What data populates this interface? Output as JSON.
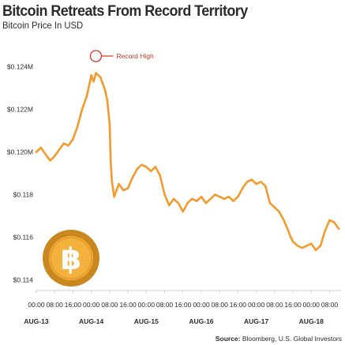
{
  "page": {
    "title": "Bitcoin Retreats From Record Territory",
    "subtitle": "Bitcoin Price In USD",
    "source_label": "Source:",
    "source_text": "Bloomberg, U.S. Global Investors"
  },
  "coin_icon": "bitcoin-coin-icon",
  "colors": {
    "line": "#f29a2e",
    "marker": "#d9332b",
    "annotation_text": "#c0392b",
    "coin_outer": "#c9871e",
    "coin_inner": "#f4b13e",
    "coin_symbol": "#ffffff",
    "axis": "#cfcfcf",
    "text": "#2b2b2b"
  },
  "chart_data": {
    "type": "line",
    "title": "Bitcoin Retreats From Record Territory",
    "subtitle": "Bitcoin Price In USD",
    "ylim": [
      0.1135,
      0.1255
    ],
    "yticks": [
      0.114,
      0.116,
      0.118,
      0.12,
      0.122,
      0.124
    ],
    "ytick_labels": [
      "$0.114",
      "$0.116",
      "$0.118",
      "$0.120M",
      "$0.122M",
      "$0.124M"
    ],
    "xlim": [
      0,
      133
    ],
    "xticks": [
      {
        "x": 0,
        "time": "00:00",
        "date": "AUG-13"
      },
      {
        "x": 8,
        "time": "08:00"
      },
      {
        "x": 16,
        "time": "16:00"
      },
      {
        "x": 24,
        "time": "00:00",
        "date": "AUG-14"
      },
      {
        "x": 32,
        "time": "08:00"
      },
      {
        "x": 40,
        "time": "16:00"
      },
      {
        "x": 48,
        "time": "00:00",
        "date": "AUG-15"
      },
      {
        "x": 56,
        "time": "08:00"
      },
      {
        "x": 64,
        "time": "16:00"
      },
      {
        "x": 72,
        "time": "00:00",
        "date": "AUG-16"
      },
      {
        "x": 80,
        "time": "08:00"
      },
      {
        "x": 88,
        "time": "16:00"
      },
      {
        "x": 96,
        "time": "00:00",
        "date": "AUG-17"
      },
      {
        "x": 104,
        "time": "08:00"
      },
      {
        "x": 112,
        "time": "16:00"
      },
      {
        "x": 120,
        "time": "00:00",
        "date": "AUG-18"
      },
      {
        "x": 128,
        "time": "08:00"
      }
    ],
    "series": [
      {
        "x": [
          0,
          2,
          4,
          6,
          8,
          10,
          12,
          14,
          16,
          18,
          20,
          22,
          23,
          24,
          25,
          26,
          28,
          30,
          31,
          32,
          32.5,
          33,
          34,
          35,
          36,
          38,
          40,
          42,
          44,
          46,
          48,
          50,
          52,
          54,
          56,
          58,
          60,
          62,
          64,
          66,
          68,
          70,
          72,
          74,
          76,
          78,
          80,
          82,
          84,
          86,
          88,
          90,
          92,
          94,
          96,
          98,
          100,
          102,
          104,
          106,
          108,
          110,
          111,
          112,
          114,
          116,
          118,
          120,
          122,
          124,
          126,
          128,
          130,
          132
        ],
        "values": [
          0.12,
          0.1202,
          0.1199,
          0.1196,
          0.1198,
          0.1201,
          0.1204,
          0.1203,
          0.1206,
          0.1212,
          0.122,
          0.1226,
          0.1231,
          0.1236,
          0.1233,
          0.1237,
          0.1235,
          0.1229,
          0.1224,
          0.1213,
          0.1195,
          0.1186,
          0.1179,
          0.1182,
          0.1185,
          0.1182,
          0.1183,
          0.1188,
          0.1192,
          0.1194,
          0.1193,
          0.1191,
          0.1193,
          0.1189,
          0.118,
          0.1175,
          0.1178,
          0.1176,
          0.1172,
          0.1176,
          0.1178,
          0.1177,
          0.1179,
          0.1176,
          0.1178,
          0.118,
          0.1179,
          0.1178,
          0.1179,
          0.1177,
          0.1179,
          0.1183,
          0.1186,
          0.1187,
          0.1185,
          0.1186,
          0.1184,
          0.1176,
          0.1174,
          0.1172,
          0.1168,
          0.1163,
          0.116,
          0.1158,
          0.1156,
          0.1155,
          0.1156,
          0.1157,
          0.1154,
          0.1156,
          0.1163,
          0.1168,
          0.1167,
          0.1164
        ]
      }
    ],
    "annotations": [
      {
        "label": "Record High",
        "x": 26,
        "y": 0.1245
      }
    ],
    "grid": false,
    "legend": "none"
  }
}
